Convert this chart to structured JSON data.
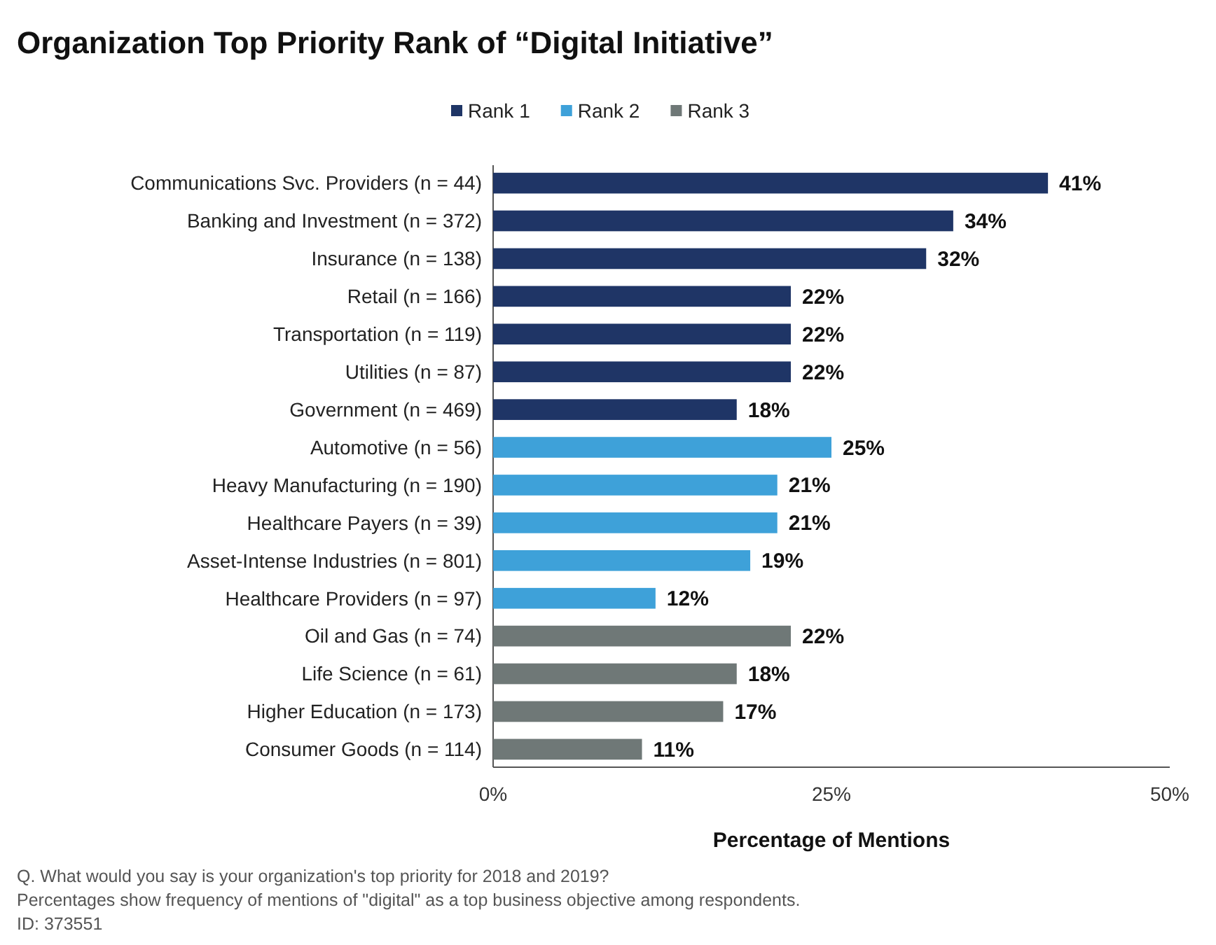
{
  "chart_data": {
    "type": "bar",
    "orientation": "horizontal",
    "title": "Organization Top Priority Rank of “Digital Initiative”",
    "xlabel": "Percentage of Mentions",
    "legend": "top",
    "categories": [
      "Communications Svc. Providers (n = 44)",
      "Banking and Investment (n = 372)",
      "Insurance (n = 138)",
      "Retail (n = 166)",
      "Transportation (n = 119)",
      "Utilities (n = 87)",
      "Government (n = 469)",
      "Automotive (n = 56)",
      "Heavy Manufacturing (n = 190)",
      "Healthcare Payers (n = 39)",
      "Asset-Intense Industries (n = 801)",
      "Healthcare Providers (n = 97)",
      "Oil and Gas (n = 74)",
      "Life Science (n = 61)",
      "Higher Education (n = 173)",
      "Consumer Goods (n = 114)"
    ],
    "series": [
      {
        "name": "Rank 1",
        "color": "#1f3566",
        "values": [
          41,
          34,
          32,
          22,
          22,
          22,
          18,
          null,
          null,
          null,
          null,
          null,
          null,
          null,
          null,
          null
        ],
        "value_labels": [
          "41%",
          "34%",
          "32%",
          "22%",
          "22%",
          "22%",
          "18%",
          null,
          null,
          null,
          null,
          null,
          null,
          null,
          null,
          null
        ]
      },
      {
        "name": "Rank 2",
        "color": "#3ea1d9",
        "values": [
          null,
          null,
          null,
          null,
          null,
          null,
          null,
          25,
          21,
          21,
          19,
          12,
          null,
          null,
          null,
          null
        ],
        "value_labels": [
          null,
          null,
          null,
          null,
          null,
          null,
          null,
          "25%",
          "21%",
          "21%",
          "19%",
          "12%",
          null,
          null,
          null,
          null
        ]
      },
      {
        "name": "Rank 3",
        "color": "#6f7877",
        "values": [
          null,
          null,
          null,
          null,
          null,
          null,
          null,
          null,
          null,
          null,
          null,
          null,
          22,
          18,
          17,
          11
        ],
        "value_labels": [
          null,
          null,
          null,
          null,
          null,
          null,
          null,
          null,
          null,
          null,
          null,
          null,
          "22%",
          "18%",
          "17%",
          "11%"
        ]
      }
    ],
    "xlim": [
      0,
      50
    ],
    "xticks": [
      {
        "value": 0,
        "label": "0%"
      },
      {
        "value": 25,
        "label": "25%"
      },
      {
        "value": 50,
        "label": "50%"
      }
    ],
    "annotations": [
      "Q. What would you say is your organization's top priority for 2018 and 2019?",
      "Percentages show frequency of mentions of \"digital\" as a top business objective among respondents.",
      "ID: 373551"
    ]
  }
}
